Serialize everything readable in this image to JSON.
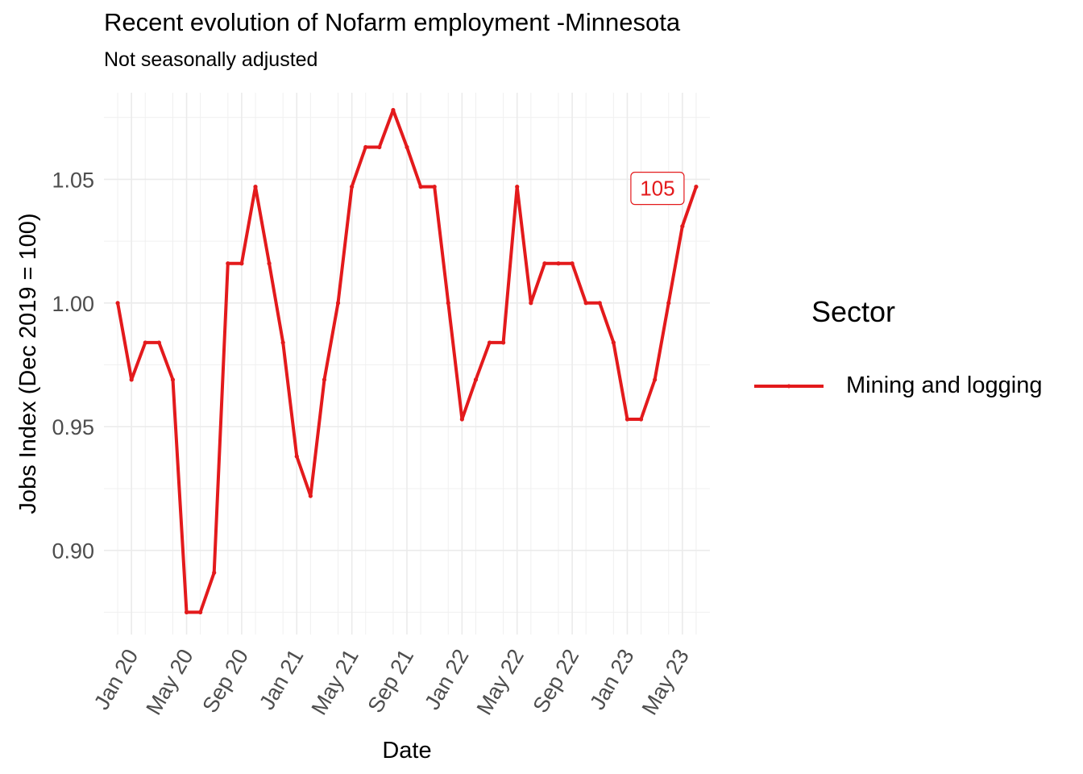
{
  "chart_data": {
    "type": "line",
    "title": "Recent evolution of Nofarm employment -Minnesota",
    "subtitle": "Not seasonally adjusted",
    "xlabel": "Date",
    "ylabel": "Jobs Index (Dec 2019 = 100)",
    "x_ticks": [
      "Jan 20",
      "May 20",
      "Sep 20",
      "Jan 21",
      "May 21",
      "Sep 21",
      "Jan 22",
      "May 22",
      "Sep 22",
      "Jan 23",
      "May 23"
    ],
    "y_ticks": [
      "0.90",
      "0.95",
      "1.00",
      "1.05"
    ],
    "ylim": [
      0.866,
      1.085
    ],
    "xlim": [
      "2019-11",
      "2023-07"
    ],
    "grid": true,
    "legend": {
      "title": "Sector",
      "position": "right"
    },
    "series": [
      {
        "name": "Mining and logging",
        "color": "#e31a1c",
        "x": [
          "2019-12",
          "2020-01",
          "2020-02",
          "2020-03",
          "2020-04",
          "2020-05",
          "2020-06",
          "2020-07",
          "2020-08",
          "2020-09",
          "2020-10",
          "2020-11",
          "2020-12",
          "2021-01",
          "2021-02",
          "2021-03",
          "2021-04",
          "2021-05",
          "2021-06",
          "2021-07",
          "2021-08",
          "2021-09",
          "2021-10",
          "2021-11",
          "2021-12",
          "2022-01",
          "2022-02",
          "2022-03",
          "2022-04",
          "2022-05",
          "2022-06",
          "2022-07",
          "2022-08",
          "2022-09",
          "2022-10",
          "2022-11",
          "2022-12",
          "2023-01",
          "2023-02",
          "2023-03",
          "2023-04",
          "2023-05",
          "2023-06"
        ],
        "values": [
          1.0,
          0.969,
          0.984,
          0.984,
          0.969,
          0.875,
          0.875,
          0.891,
          1.016,
          1.016,
          1.047,
          1.016,
          0.984,
          0.938,
          0.922,
          0.969,
          1.0,
          1.047,
          1.063,
          1.063,
          1.078,
          1.063,
          1.047,
          1.047,
          1.0,
          0.953,
          0.969,
          0.984,
          0.984,
          1.047,
          1.0,
          1.016,
          1.016,
          1.016,
          1.0,
          1.0,
          0.984,
          0.953,
          0.953,
          0.969,
          1.0,
          1.031,
          1.047
        ],
        "end_label": "105"
      }
    ]
  }
}
